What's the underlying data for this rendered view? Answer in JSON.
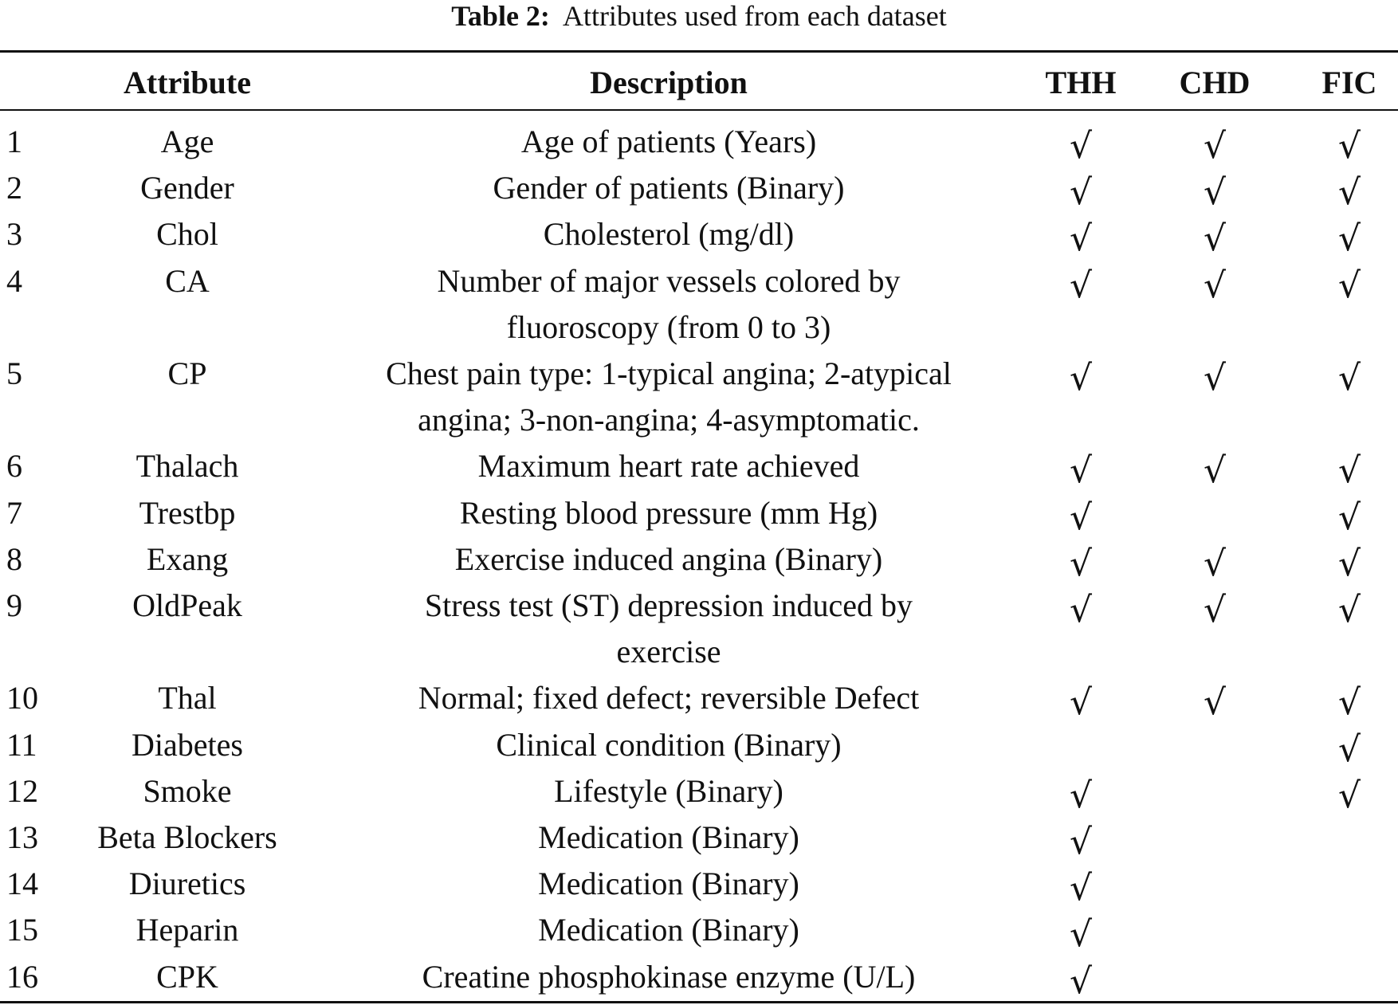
{
  "caption": {
    "label": "Table 2:",
    "text": "Attributes used from each dataset"
  },
  "headers": {
    "attribute": "Attribute",
    "description": "Description",
    "thh": "THH",
    "chd": "CHD",
    "fic": "FIC"
  },
  "check_symbol": "√",
  "rows": [
    {
      "n": "1",
      "attribute": "Age",
      "description": [
        "Age of patients (Years)"
      ],
      "thh": true,
      "chd": true,
      "fic": true
    },
    {
      "n": "2",
      "attribute": "Gender",
      "description": [
        "Gender of patients (Binary)"
      ],
      "thh": true,
      "chd": true,
      "fic": true
    },
    {
      "n": "3",
      "attribute": "Chol",
      "description": [
        "Cholesterol (mg/dl)"
      ],
      "thh": true,
      "chd": true,
      "fic": true
    },
    {
      "n": "4",
      "attribute": "CA",
      "description": [
        "Number of major vessels colored by",
        "fluoroscopy (from 0 to 3)"
      ],
      "thh": true,
      "chd": true,
      "fic": true
    },
    {
      "n": "5",
      "attribute": "CP",
      "description": [
        "Chest pain type: 1-typical angina; 2-atypical",
        "angina; 3-non-angina; 4-asymptomatic."
      ],
      "thh": true,
      "chd": true,
      "fic": true
    },
    {
      "n": "6",
      "attribute": "Thalach",
      "description": [
        "Maximum heart rate achieved"
      ],
      "thh": true,
      "chd": true,
      "fic": true
    },
    {
      "n": "7",
      "attribute": "Trestbp",
      "description": [
        "Resting blood pressure (mm Hg)"
      ],
      "thh": true,
      "chd": false,
      "fic": true
    },
    {
      "n": "8",
      "attribute": "Exang",
      "description": [
        "Exercise induced angina (Binary)"
      ],
      "thh": true,
      "chd": true,
      "fic": true
    },
    {
      "n": "9",
      "attribute": "OldPeak",
      "description": [
        "Stress test (ST) depression induced by",
        "exercise"
      ],
      "thh": true,
      "chd": true,
      "fic": true
    },
    {
      "n": "10",
      "attribute": "Thal",
      "description": [
        "Normal; fixed defect; reversible Defect"
      ],
      "thh": true,
      "chd": true,
      "fic": true
    },
    {
      "n": "11",
      "attribute": "Diabetes",
      "description": [
        "Clinical condition (Binary)"
      ],
      "thh": false,
      "chd": false,
      "fic": true
    },
    {
      "n": "12",
      "attribute": "Smoke",
      "description": [
        "Lifestyle (Binary)"
      ],
      "thh": true,
      "chd": false,
      "fic": true
    },
    {
      "n": "13",
      "attribute": "Beta Blockers",
      "description": [
        "Medication (Binary)"
      ],
      "thh": true,
      "chd": false,
      "fic": false
    },
    {
      "n": "14",
      "attribute": "Diuretics",
      "description": [
        "Medication (Binary)"
      ],
      "thh": true,
      "chd": false,
      "fic": false
    },
    {
      "n": "15",
      "attribute": "Heparin",
      "description": [
        "Medication (Binary)"
      ],
      "thh": true,
      "chd": false,
      "fic": false
    },
    {
      "n": "16",
      "attribute": "CPK",
      "description": [
        "Creatine phosphokinase enzyme (U/L)"
      ],
      "thh": true,
      "chd": false,
      "fic": false
    }
  ]
}
